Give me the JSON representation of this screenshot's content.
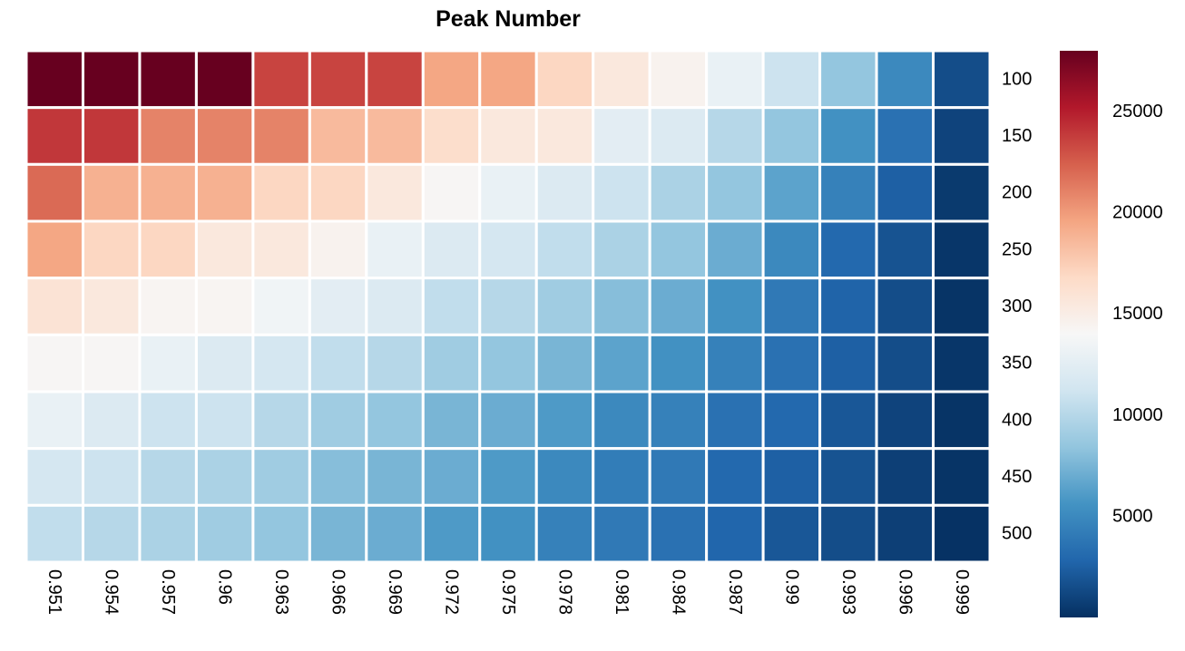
{
  "chart_data": {
    "type": "heatmap",
    "title": "Peak Number",
    "x_categories": [
      "0.951",
      "0.954",
      "0.957",
      "0.96",
      "0.963",
      "0.966",
      "0.969",
      "0.972",
      "0.975",
      "0.978",
      "0.981",
      "0.984",
      "0.987",
      "0.99",
      "0.993",
      "0.996",
      "0.999"
    ],
    "y_categories": [
      "100",
      "150",
      "200",
      "250",
      "300",
      "350",
      "400",
      "450",
      "500"
    ],
    "values": [
      [
        28000,
        28000,
        28000,
        28000,
        23500,
        23500,
        23500,
        19500,
        19500,
        17000,
        15500,
        14500,
        13000,
        11000,
        8500,
        5000,
        1500
      ],
      [
        24000,
        24000,
        21000,
        21000,
        21000,
        18500,
        18500,
        16500,
        15500,
        15500,
        12500,
        12000,
        10000,
        8500,
        5500,
        3500,
        1000
      ],
      [
        22000,
        19000,
        19000,
        19000,
        17000,
        17000,
        15500,
        14200,
        13000,
        12000,
        11000,
        9500,
        8500,
        6500,
        4500,
        2500,
        500
      ],
      [
        19500,
        17000,
        17000,
        15500,
        15500,
        14500,
        13000,
        12000,
        11500,
        10500,
        9500,
        8500,
        7000,
        5000,
        3000,
        1800,
        300
      ],
      [
        16000,
        15500,
        14300,
        14300,
        13500,
        12500,
        12000,
        10500,
        10000,
        9000,
        8000,
        7000,
        5500,
        4000,
        2700,
        1500,
        200
      ],
      [
        14200,
        14200,
        13000,
        12000,
        11500,
        10500,
        10000,
        9000,
        8500,
        7500,
        6500,
        5500,
        4500,
        3500,
        2500,
        1500,
        300
      ],
      [
        13000,
        12000,
        11000,
        11000,
        10000,
        9000,
        8500,
        7500,
        7000,
        6000,
        5000,
        4500,
        3500,
        3000,
        2000,
        1000,
        200
      ],
      [
        11500,
        11000,
        10000,
        9500,
        9000,
        8000,
        7500,
        7000,
        6000,
        5000,
        4200,
        4000,
        3000,
        2500,
        1800,
        800,
        200
      ],
      [
        10500,
        10000,
        9500,
        9000,
        8500,
        7500,
        7000,
        6000,
        5500,
        4500,
        4000,
        3500,
        2800,
        2000,
        1500,
        800,
        100
      ]
    ],
    "color_scale": {
      "min": 0,
      "max": 28000,
      "stops": [
        "#053061",
        "#2166ac",
        "#4393c3",
        "#92c5de",
        "#d1e5f0",
        "#f7f7f7",
        "#fddbc7",
        "#f4a582",
        "#d6604d",
        "#b2182b",
        "#67001f"
      ]
    },
    "colorbar_ticks": [
      5000,
      10000,
      15000,
      20000,
      25000
    ],
    "grid_line_color": "#ffffff"
  }
}
